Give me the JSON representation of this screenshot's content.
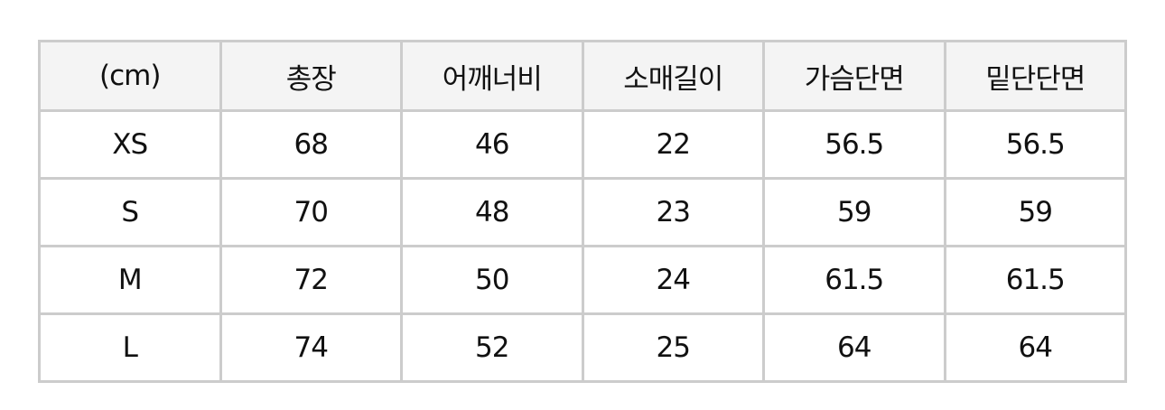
{
  "table": {
    "headers": [
      "(cm)",
      "총장",
      "어깨너비",
      "소매길이",
      "가슴단면",
      "밑단단면"
    ],
    "rows": [
      [
        "XS",
        "68",
        "46",
        "22",
        "56.5",
        "56.5"
      ],
      [
        "S",
        "70",
        "48",
        "23",
        "59",
        "59"
      ],
      [
        "M",
        "72",
        "50",
        "24",
        "61.5",
        "61.5"
      ],
      [
        "L",
        "74",
        "52",
        "25",
        "64",
        "64"
      ]
    ]
  }
}
